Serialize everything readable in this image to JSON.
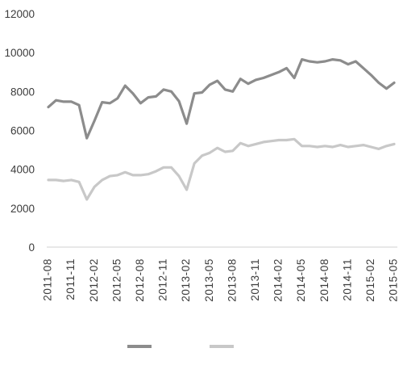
{
  "chart_data": {
    "type": "line",
    "title": "",
    "xlabel": "",
    "ylabel": "",
    "ylim": [
      0,
      12000
    ],
    "yticks": [
      0,
      2000,
      4000,
      6000,
      8000,
      10000,
      12000
    ],
    "ytick_labels": [
      "0",
      "2000",
      "4000",
      "6000",
      "8000",
      "10000",
      "12000"
    ],
    "xtick_labels": [
      "2011-08",
      "2011-11",
      "2012-02",
      "2012-05",
      "2012-08",
      "2012-11",
      "2013-02",
      "2013-05",
      "2013-08",
      "2013-11",
      "2014-02",
      "2014-05",
      "2014-08",
      "2014-11",
      "2015-02",
      "2015-05"
    ],
    "grid": false,
    "legend_position": "bottom",
    "x": [
      "2011-08",
      "2011-09",
      "2011-10",
      "2011-11",
      "2011-12",
      "2012-01",
      "2012-02",
      "2012-03",
      "2012-04",
      "2012-05",
      "2012-06",
      "2012-07",
      "2012-08",
      "2012-09",
      "2012-10",
      "2012-11",
      "2012-12",
      "2013-01",
      "2013-02",
      "2013-03",
      "2013-04",
      "2013-05",
      "2013-06",
      "2013-07",
      "2013-08",
      "2013-09",
      "2013-10",
      "2013-11",
      "2013-12",
      "2014-01",
      "2014-02",
      "2014-03",
      "2014-04",
      "2014-05",
      "2014-06",
      "2014-07",
      "2014-08",
      "2014-09",
      "2014-10",
      "2014-11",
      "2014-12",
      "2015-01",
      "2015-02",
      "2015-03",
      "2015-04",
      "2015-05"
    ],
    "series": [
      {
        "color": "#8c8c8c",
        "values": [
          7200,
          7550,
          7480,
          7480,
          7300,
          5600,
          6500,
          7450,
          7400,
          7650,
          8300,
          7900,
          7400,
          7700,
          7750,
          8100,
          8000,
          7500,
          6350,
          7900,
          7950,
          8350,
          8550,
          8100,
          8000,
          8650,
          8400,
          8600,
          8700,
          8850,
          9000,
          9200,
          8700,
          9650,
          9550,
          9500,
          9550,
          9650,
          9600,
          9400,
          9550,
          9200,
          8850,
          8450,
          8150,
          8450
        ]
      },
      {
        "color": "#c8c8c8",
        "values": [
          3450,
          3450,
          3400,
          3450,
          3350,
          2450,
          3100,
          3450,
          3650,
          3700,
          3850,
          3700,
          3700,
          3750,
          3900,
          4100,
          4100,
          3650,
          2950,
          4300,
          4700,
          4850,
          5100,
          4900,
          4950,
          5350,
          5200,
          5300,
          5400,
          5450,
          5500,
          5500,
          5550,
          5200,
          5200,
          5150,
          5200,
          5150,
          5250,
          5150,
          5200,
          5250,
          5150,
          5050,
          5200,
          5300
        ]
      }
    ]
  }
}
